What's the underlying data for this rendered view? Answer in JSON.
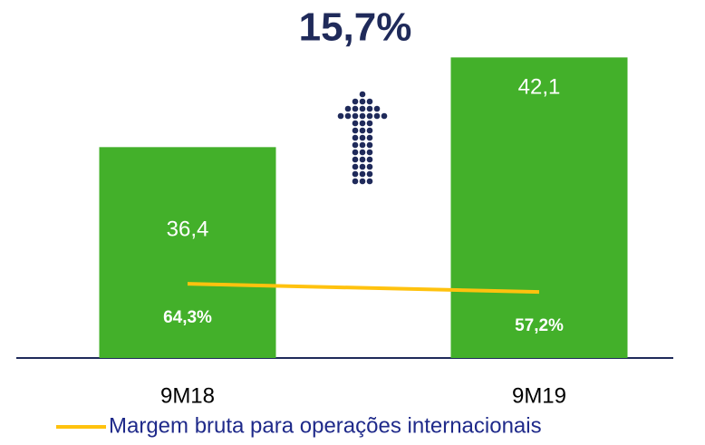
{
  "chart_data": {
    "type": "bar",
    "title": "15,7%",
    "categories": [
      "9M18",
      "9M19"
    ],
    "series": [
      {
        "type": "bar",
        "color": "#43b02a",
        "values": [
          36.4,
          42.1
        ],
        "value_labels": [
          "36,4",
          "42,1"
        ]
      },
      {
        "type": "line",
        "name": "Margem bruta para operações internacionais",
        "color": "#ffc20e",
        "axis": "y2",
        "values": [
          64.3,
          57.2
        ],
        "value_labels": [
          "64,3%",
          "57,2%"
        ]
      }
    ],
    "ylim": [
      23,
      45
    ],
    "y2lim": [
      0,
      300
    ]
  }
}
